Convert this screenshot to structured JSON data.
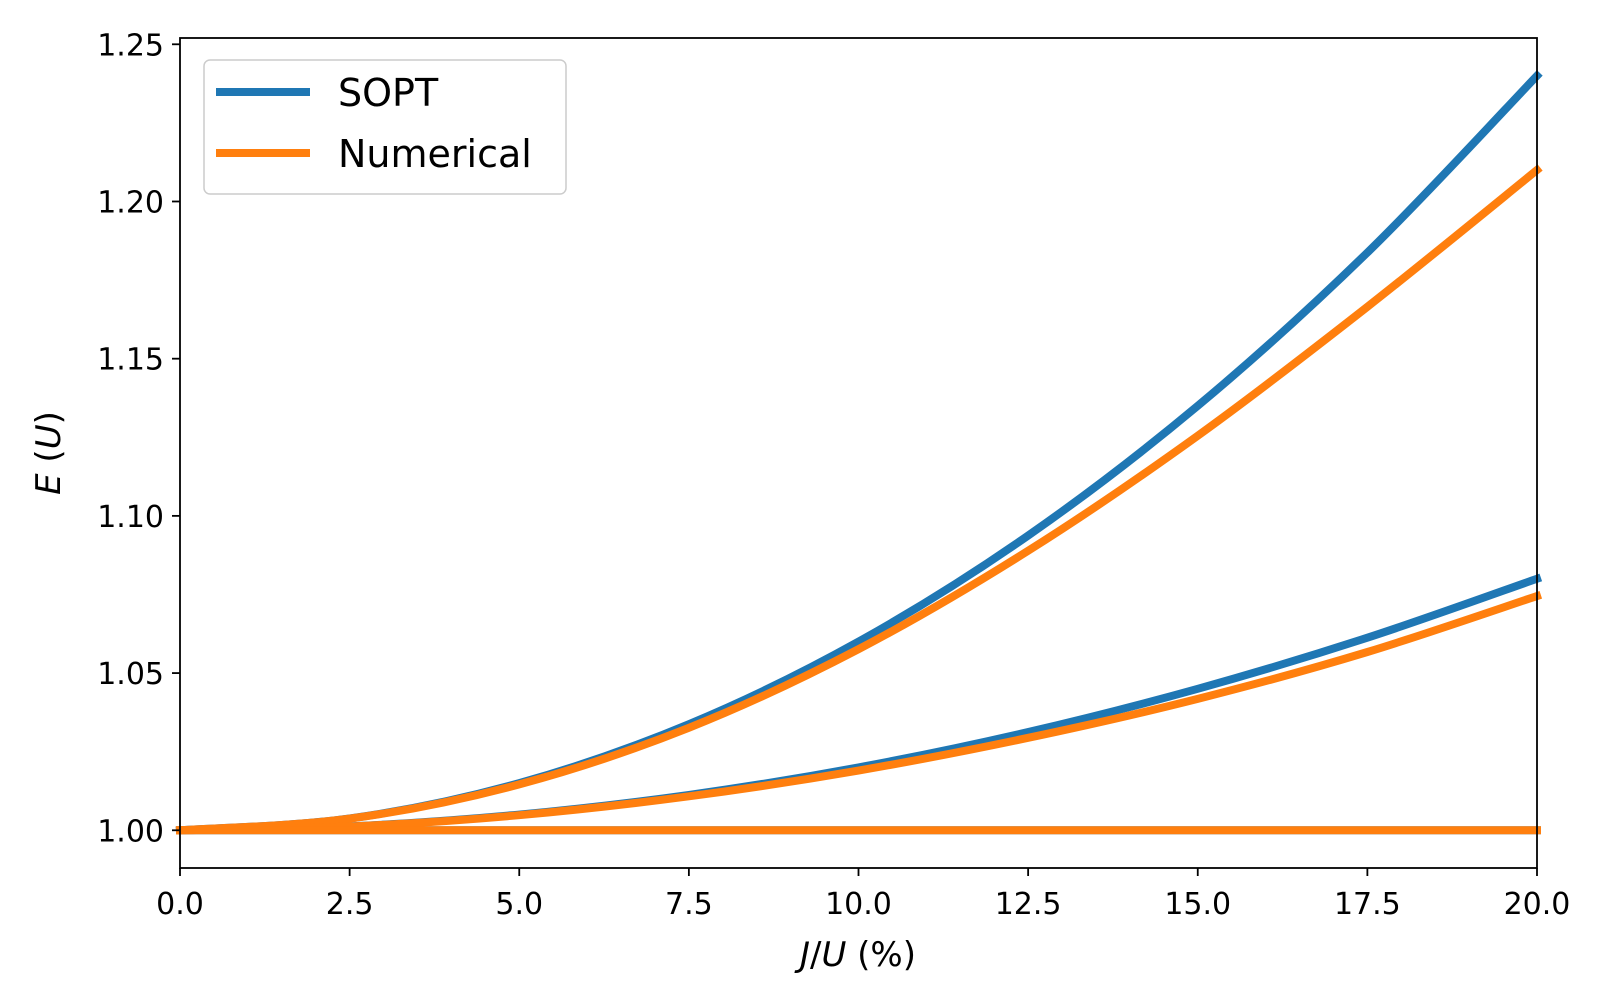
{
  "chart_data": {
    "type": "line",
    "xlabel": "J/U (%)",
    "ylabel": "E (U)",
    "xlim": [
      0,
      20
    ],
    "ylim": [
      0.988,
      1.252
    ],
    "grid": false,
    "legend_position": "top-left",
    "xticks": [
      "0.0",
      "2.5",
      "5.0",
      "7.5",
      "10.0",
      "12.5",
      "15.0",
      "17.5",
      "20.0"
    ],
    "yticks": [
      "1.00",
      "1.05",
      "1.10",
      "1.15",
      "1.20",
      "1.25"
    ],
    "legend": [
      {
        "name": "SOPT",
        "color": "#1f77b4"
      },
      {
        "name": "Numerical",
        "color": "#ff7f0e"
      }
    ],
    "series": [
      {
        "name": "SOPT",
        "color": "#1f77b4",
        "x": [
          0,
          2.5,
          5,
          7.5,
          10,
          12.5,
          15,
          17.5,
          20
        ],
        "y": [
          1.0,
          1.00375,
          1.015,
          1.03375,
          1.06,
          1.09375,
          1.135,
          1.18375,
          1.24
        ]
      },
      {
        "name": "SOPT",
        "color": "#1f77b4",
        "x": [
          0,
          2.5,
          5,
          7.5,
          10,
          12.5,
          15,
          17.5,
          20
        ],
        "y": [
          1.0,
          1.00125,
          1.005,
          1.01125,
          1.02,
          1.03125,
          1.045,
          1.06125,
          1.08
        ]
      },
      {
        "name": "SOPT",
        "color": "#1f77b4",
        "x": [
          0,
          20
        ],
        "y": [
          1.0,
          1.0
        ]
      },
      {
        "name": "Numerical",
        "color": "#ff7f0e",
        "x": [
          0,
          2.5,
          5,
          7.5,
          10,
          12.5,
          15,
          17.5,
          20
        ],
        "y": [
          1.0,
          1.0037,
          1.0146,
          1.0326,
          1.0576,
          1.0889,
          1.1255,
          1.1665,
          1.21
        ]
      },
      {
        "name": "Numerical",
        "color": "#ff7f0e",
        "x": [
          0,
          2.5,
          5,
          7.5,
          10,
          12.5,
          15,
          17.5,
          20
        ],
        "y": [
          1.0,
          1.0012,
          1.0048,
          1.0108,
          1.019,
          1.0294,
          1.0418,
          1.0567,
          1.0745
        ]
      },
      {
        "name": "Numerical",
        "color": "#ff7f0e",
        "x": [
          0,
          20
        ],
        "y": [
          1.0,
          1.0
        ]
      }
    ]
  }
}
